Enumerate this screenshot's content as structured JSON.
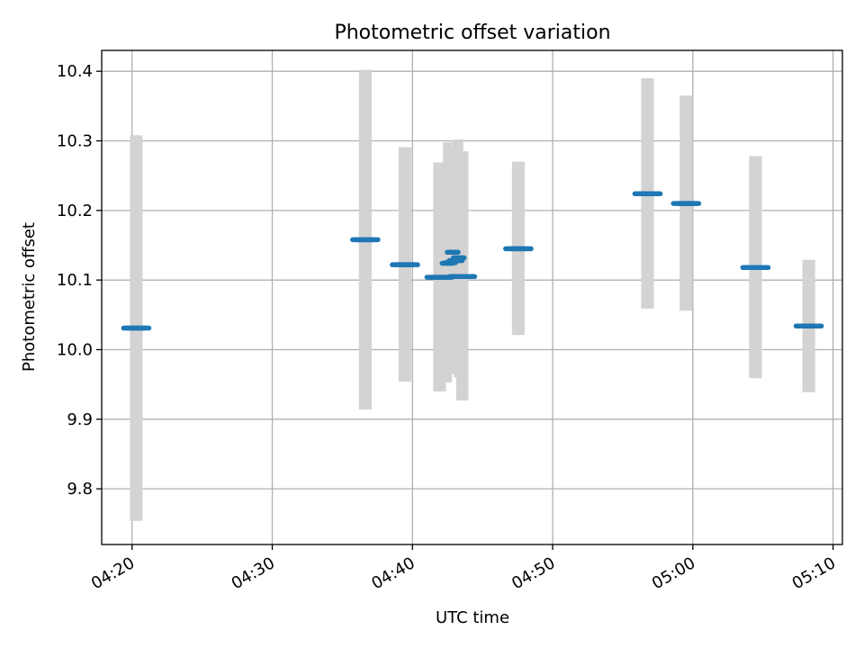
{
  "chart_data": {
    "type": "scatter",
    "title": "Photometric offset variation",
    "xlabel": "UTC time",
    "ylabel": "Photometric offset",
    "x_ticks": [
      "04:20",
      "04:30",
      "04:40",
      "04:50",
      "05:00",
      "05:10"
    ],
    "y_ticks": [
      "9.8",
      "9.9",
      "10.0",
      "10.1",
      "10.2",
      "10.3",
      "10.4"
    ],
    "xlim": [
      "04:17:50",
      "05:10:40"
    ],
    "ylim": [
      9.72,
      10.43
    ],
    "grid": true,
    "colors": {
      "marker": "#1f77b4",
      "errorbar": "#d3d3d3",
      "grid": "#b0b0b0"
    },
    "points": [
      {
        "t": "04:20:10",
        "w": 24,
        "y": 10.031,
        "ylo": 9.754,
        "yhi": 10.308
      },
      {
        "t": "04:20:26",
        "w": 24,
        "y": 10.031,
        "ylo": 9.754,
        "yhi": 10.308
      },
      {
        "t": "04:36:30",
        "w": 24,
        "y": 10.158,
        "ylo": 9.914,
        "yhi": 10.402
      },
      {
        "t": "04:36:46",
        "w": 24,
        "y": 10.158,
        "ylo": 9.914,
        "yhi": 10.402
      },
      {
        "t": "04:39:20",
        "w": 24,
        "y": 10.122,
        "ylo": 9.954,
        "yhi": 10.291
      },
      {
        "t": "04:39:36",
        "w": 24,
        "y": 10.122,
        "ylo": 9.954,
        "yhi": 10.291
      },
      {
        "t": "04:41:48",
        "w": 24,
        "y": 10.104,
        "ylo": 9.94,
        "yhi": 10.269
      },
      {
        "t": "04:42:04",
        "w": 24,
        "y": 10.104,
        "ylo": 9.94,
        "yhi": 10.269
      },
      {
        "t": "04:42:30",
        "w": 12,
        "y": 10.124,
        "ylo": 9.953,
        "yhi": 10.298
      },
      {
        "t": "04:42:42",
        "w": 12,
        "y": 10.125,
        "ylo": 9.965,
        "yhi": 10.29
      },
      {
        "t": "04:42:52",
        "w": 12,
        "y": 10.14,
        "ylo": 9.99,
        "yhi": 10.29
      },
      {
        "t": "04:43:00",
        "w": 12,
        "y": 10.128,
        "ylo": 9.98,
        "yhi": 10.278
      },
      {
        "t": "04:43:10",
        "w": 12,
        "y": 10.128,
        "ylo": 9.975,
        "yhi": 10.3
      },
      {
        "t": "04:43:18",
        "w": 12,
        "y": 10.132,
        "ylo": 9.96,
        "yhi": 10.302
      },
      {
        "t": "04:43:26",
        "w": 24,
        "y": 10.105,
        "ylo": 9.927,
        "yhi": 10.285
      },
      {
        "t": "04:43:40",
        "w": 24,
        "y": 10.105,
        "ylo": 9.927,
        "yhi": 10.285
      },
      {
        "t": "04:47:25",
        "w": 24,
        "y": 10.145,
        "ylo": 10.021,
        "yhi": 10.27
      },
      {
        "t": "04:47:41",
        "w": 24,
        "y": 10.145,
        "ylo": 10.021,
        "yhi": 10.27
      },
      {
        "t": "04:56:38",
        "w": 24,
        "y": 10.224,
        "ylo": 10.059,
        "yhi": 10.39
      },
      {
        "t": "04:56:54",
        "w": 24,
        "y": 10.224,
        "ylo": 10.059,
        "yhi": 10.39
      },
      {
        "t": "04:59:23",
        "w": 24,
        "y": 10.21,
        "ylo": 10.056,
        "yhi": 10.365
      },
      {
        "t": "04:59:39",
        "w": 24,
        "y": 10.21,
        "ylo": 10.056,
        "yhi": 10.365
      },
      {
        "t": "05:04:20",
        "w": 24,
        "y": 10.118,
        "ylo": 9.959,
        "yhi": 10.278
      },
      {
        "t": "05:04:36",
        "w": 24,
        "y": 10.118,
        "ylo": 9.959,
        "yhi": 10.278
      },
      {
        "t": "05:08:08",
        "w": 24,
        "y": 10.034,
        "ylo": 9.939,
        "yhi": 10.129
      },
      {
        "t": "05:08:24",
        "w": 24,
        "y": 10.034,
        "ylo": 9.939,
        "yhi": 10.129
      }
    ]
  }
}
